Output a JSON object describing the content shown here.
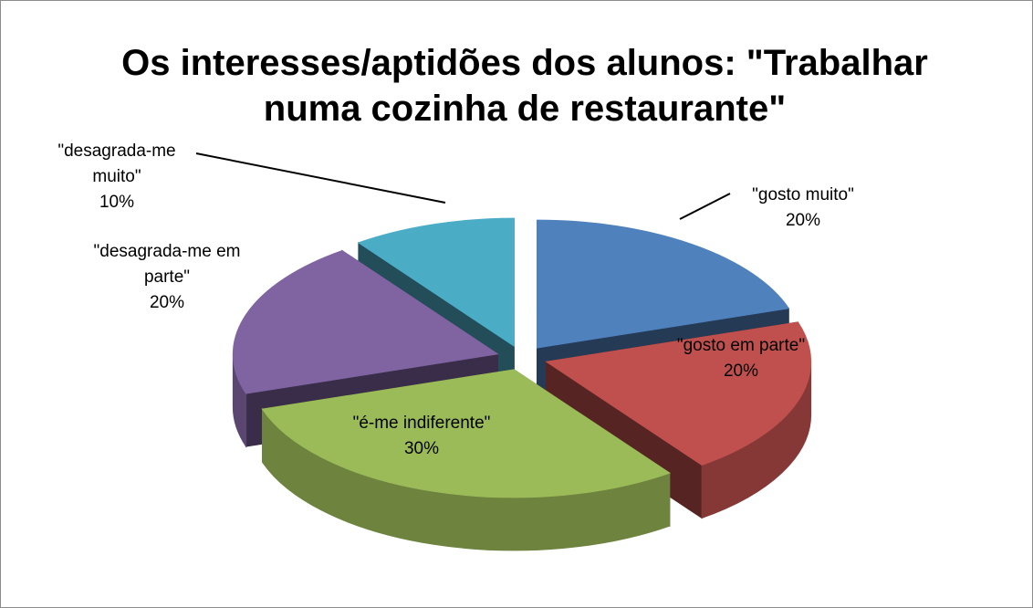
{
  "chart_data": {
    "type": "pie3d",
    "title": "Os interesses/aptidões dos alunos: \"Trabalhar numa cozinha de restaurante\"",
    "categories": [
      "\"gosto muito\"",
      "\"gosto em parte\"",
      "\"é-me indiferente\"",
      "\"desagrada-me em parte\"",
      "\"desagrada-me muito\""
    ],
    "values": [
      20,
      20,
      30,
      20,
      10
    ],
    "value_labels": [
      "20%",
      "20%",
      "30%",
      "20%",
      "10%"
    ],
    "colors": [
      "#4f81bd",
      "#c0504d",
      "#9bbb59",
      "#8064a2",
      "#4bacc6"
    ]
  }
}
